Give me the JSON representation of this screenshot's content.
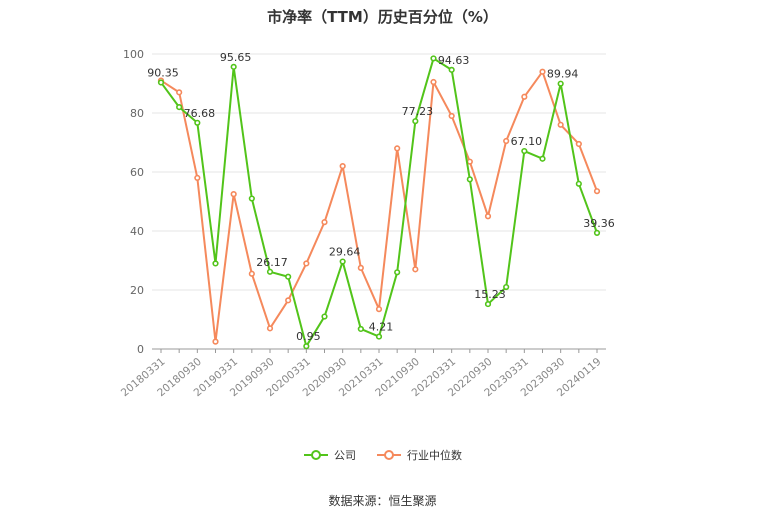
{
  "chart_data": {
    "type": "line",
    "title": "市净率（TTM）历史百分位（%）",
    "xlabel": "",
    "ylabel": "",
    "ylim": [
      0,
      100
    ],
    "yticks": [
      0,
      20,
      40,
      60,
      80,
      100
    ],
    "grid": true,
    "legend_position": "bottom",
    "x": [
      "20180331",
      "20180630",
      "20180930",
      "20181231",
      "20190331",
      "20190630",
      "20190930",
      "20191231",
      "20200331",
      "20200630",
      "20200930",
      "20201231",
      "20210331",
      "20210630",
      "20210930",
      "20211231",
      "20220331",
      "20220630",
      "20220930",
      "20221231",
      "20230331",
      "20230630",
      "20230930",
      "20231231",
      "20240119"
    ],
    "xtick_labels": [
      "20180331",
      "20180930",
      "20190331",
      "20190930",
      "20200331",
      "20200930",
      "20210331",
      "20210930",
      "20220331",
      "20220930",
      "20230331",
      "20230930",
      "20240119"
    ],
    "series": [
      {
        "name": "公司",
        "color": "#52c41a",
        "values": [
          90.35,
          82.0,
          76.68,
          29.0,
          95.65,
          51.0,
          26.17,
          24.5,
          0.95,
          11.0,
          29.64,
          6.8,
          4.21,
          26.0,
          77.23,
          98.5,
          94.63,
          57.5,
          15.23,
          21.0,
          67.1,
          64.5,
          89.94,
          56.0,
          39.36
        ],
        "labels": {
          "0": "90.35",
          "2": "76.68",
          "4": "95.65",
          "6": "26.17",
          "8": "0.95",
          "10": "29.64",
          "12": "4.21",
          "14": "77.23",
          "16": "94.63",
          "18": "15.23",
          "20": "67.10",
          "22": "89.94",
          "24": "39.36"
        }
      },
      {
        "name": "行业中位数",
        "color": "#f5895c",
        "values": [
          91.0,
          87.0,
          58.0,
          2.5,
          52.5,
          25.5,
          7.0,
          16.5,
          29.0,
          43.0,
          62.0,
          27.5,
          13.5,
          68.0,
          27.0,
          90.5,
          79.0,
          63.5,
          45.0,
          70.5,
          85.5,
          94.0,
          76.0,
          69.5,
          53.5
        ]
      }
    ]
  },
  "legend": {
    "company_label": "公司",
    "industry_label": "行业中位数"
  },
  "source_text": "数据来源：恒生聚源"
}
